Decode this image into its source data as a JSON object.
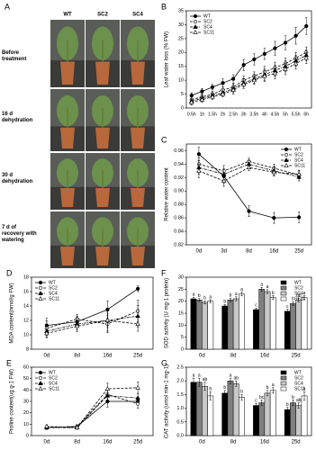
{
  "panel_a": {
    "panel": "A",
    "columns": [
      "WT",
      "SC2",
      "SC4"
    ],
    "rows": [
      "Before treatment",
      "16 d dehydration",
      "30 d dehydration",
      "7 d of recovery with watering"
    ]
  },
  "chart_data": [
    {
      "type": "line",
      "panel": "B",
      "ylabel": "Leaf water loss (% FW)",
      "categories": [
        "0.5h",
        "1h",
        "1.5h",
        "2h",
        "2.5h",
        "3h",
        "3.5h",
        "4h",
        "4.5h",
        "5h",
        "5.5h",
        "6h"
      ],
      "series": [
        {
          "name": "WT",
          "color": "#000000",
          "marker": "filled-circle",
          "dash": "solid",
          "values": [
            4.5,
            6,
            7.5,
            9,
            10.5,
            15.5,
            17.5,
            19.5,
            21.5,
            23.5,
            26,
            29.5
          ],
          "errors": [
            1,
            1,
            1,
            1.5,
            1.5,
            2,
            2,
            2,
            2.5,
            2.5,
            3,
            3
          ]
        },
        {
          "name": "SC2",
          "color": "#000000",
          "marker": "open-circle",
          "dash": "dashed",
          "values": [
            3,
            4,
            5,
            6.5,
            7.5,
            10,
            11.5,
            13,
            14.5,
            16,
            18,
            20
          ],
          "errors": [
            1,
            1,
            1,
            1,
            1.5,
            1.5,
            1.5,
            2,
            2,
            2,
            2,
            2
          ]
        },
        {
          "name": "SC4",
          "color": "#000000",
          "marker": "filled-triangle",
          "dash": "dash-dot",
          "values": [
            2.5,
            3.5,
            4.5,
            5.5,
            7,
            9,
            10.5,
            12,
            13.5,
            15,
            17,
            19
          ],
          "errors": [
            1,
            1,
            1,
            1,
            1.5,
            1.5,
            1.5,
            2,
            2,
            2,
            2,
            2
          ]
        },
        {
          "name": "SC11",
          "color": "#000000",
          "marker": "open-triangle",
          "dash": "dashed",
          "values": [
            2,
            3,
            4,
            5,
            6.5,
            8.5,
            10,
            11.5,
            12.5,
            14,
            16,
            18
          ],
          "errors": [
            1,
            1,
            1,
            1,
            1.5,
            1.5,
            1.5,
            2,
            2,
            2,
            2,
            2
          ]
        }
      ],
      "ylim": [
        0,
        35
      ],
      "yticks": [
        0,
        5,
        10,
        15,
        20,
        25,
        30,
        35
      ],
      "legend": "top-left"
    },
    {
      "type": "line",
      "panel": "C",
      "ylabel": "Relative water content",
      "categories": [
        "0d",
        "3d",
        "8d",
        "16d",
        "25d"
      ],
      "series": [
        {
          "name": "WT",
          "color": "#000000",
          "marker": "filled-circle",
          "dash": "solid",
          "values": [
            0.955,
            0.922,
            0.87,
            0.86,
            0.861
          ],
          "errors": [
            0.01,
            0.01,
            0.008,
            0.008,
            0.008
          ]
        },
        {
          "name": "SC2",
          "color": "#000000",
          "marker": "open-circle",
          "dash": "dashed",
          "values": [
            0.94,
            0.93,
            0.944,
            0.934,
            0.924
          ],
          "errors": [
            0.01,
            0.008,
            0.005,
            0.006,
            0.006
          ]
        },
        {
          "name": "SC4",
          "color": "#000000",
          "marker": "filled-triangle",
          "dash": "dash-dot",
          "values": [
            0.935,
            0.925,
            0.94,
            0.93,
            0.921
          ],
          "errors": [
            0.01,
            0.008,
            0.005,
            0.006,
            0.006
          ]
        },
        {
          "name": "SC11",
          "color": "#000000",
          "marker": "open-triangle",
          "dash": "dashed",
          "values": [
            0.93,
            0.915,
            0.935,
            0.928,
            0.925
          ],
          "errors": [
            0.01,
            0.008,
            0.005,
            0.006,
            0.006
          ]
        }
      ],
      "ylim": [
        0.82,
        0.97
      ],
      "yticks": [
        0.82,
        0.84,
        0.86,
        0.88,
        {
          "value": 0.9,
          "label": "0.90"
        },
        0.92,
        0.94,
        0.96
      ],
      "legend": "top-right"
    },
    {
      "type": "line",
      "panel": "D",
      "ylabel": "MDA content(nmol/g FW)",
      "categories": [
        "0d",
        "8d",
        "16d",
        "25d"
      ],
      "series": [
        {
          "name": "WT",
          "color": "#000000",
          "marker": "filled-circle",
          "dash": "solid",
          "values": [
            11.3,
            11.8,
            13.5,
            16.4
          ],
          "errors": [
            1,
            0.8,
            1.2,
            0.4
          ]
        },
        {
          "name": "SC2",
          "color": "#000000",
          "marker": "open-circle",
          "dash": "dashed",
          "values": [
            10.9,
            12.2,
            11.5,
            13.3
          ],
          "errors": [
            1,
            0.6,
            1.2,
            1.5
          ]
        },
        {
          "name": "SC4",
          "color": "#000000",
          "marker": "filled-triangle",
          "dash": "dash-dot",
          "values": [
            10.5,
            11.5,
            12,
            12.6
          ],
          "errors": [
            0.8,
            0.8,
            1.5,
            1.5
          ]
        },
        {
          "name": "SC11",
          "color": "#000000",
          "marker": "open-triangle",
          "dash": "dashed",
          "values": [
            10.2,
            11.2,
            12,
            11.5
          ],
          "errors": [
            0.6,
            0.8,
            1,
            1
          ]
        }
      ],
      "ylim": [
        8,
        18
      ],
      "yticks": [
        8,
        10,
        12,
        14,
        16,
        18
      ],
      "legend": "top-left"
    },
    {
      "type": "line",
      "panel": "E",
      "ylabel": "Proline content(ug g-1 FW)",
      "categories": [
        "0d",
        "8d",
        "16d",
        "25d"
      ],
      "series": [
        {
          "name": "WT",
          "color": "#000000",
          "marker": "filled-circle",
          "dash": "solid",
          "values": [
            7,
            8,
            30,
            30
          ],
          "errors": [
            1.5,
            1.5,
            5,
            3
          ]
        },
        {
          "name": "SC2",
          "color": "#000000",
          "marker": "open-circle",
          "dash": "dashed",
          "values": [
            7,
            8,
            36,
            28
          ],
          "errors": [
            1.5,
            1.5,
            5,
            4
          ]
        },
        {
          "name": "SC4",
          "color": "#000000",
          "marker": "filled-triangle",
          "dash": "dash-dot",
          "values": [
            7,
            7,
            35,
            33
          ],
          "errors": [
            1.5,
            1.5,
            5,
            4
          ]
        },
        {
          "name": "SC11",
          "color": "#000000",
          "marker": "open-triangle",
          "dash": "dashed",
          "values": [
            8,
            7,
            41,
            42
          ],
          "errors": [
            1.5,
            1.5,
            5,
            5
          ]
        }
      ],
      "ylim": [
        0,
        60
      ],
      "yticks": [
        0,
        10,
        20,
        30,
        40,
        50,
        60
      ],
      "legend": "top-left"
    },
    {
      "type": "bar",
      "panel": "F",
      "ylabel": "SOD activity (U mg-1 protein)",
      "categories": [
        "0d",
        "8d",
        "16d",
        "25d"
      ],
      "series": [
        {
          "name": "WT",
          "color": "#000000",
          "values": [
            21,
            18,
            16.5,
            15.8
          ],
          "errors": [
            0.6,
            0.6,
            0.6,
            0.8
          ],
          "letters": [
            "a",
            "b",
            "c",
            "c"
          ]
        },
        {
          "name": "SC2",
          "color": "#808080",
          "values": [
            20.5,
            20.5,
            25,
            19
          ],
          "errors": [
            0.6,
            0.8,
            0.8,
            0.8
          ],
          "letters": [
            "b",
            "b",
            "a",
            "b"
          ]
        },
        {
          "name": "SC4",
          "color": "#c8c8c8",
          "values": [
            19.5,
            21,
            24,
            20.5
          ],
          "errors": [
            0.6,
            0.8,
            0.8,
            0.8
          ],
          "letters": [
            "b",
            "a",
            "a",
            "ab"
          ]
        },
        {
          "name": "SC11",
          "color": "#ffffff",
          "values": [
            20,
            23,
            21.5,
            21.5
          ],
          "errors": [
            0.6,
            0.8,
            0.8,
            0.8
          ],
          "letters": [
            "a",
            "a",
            "b",
            "a"
          ]
        }
      ],
      "ylim": [
        0,
        30
      ],
      "yticks": [
        0,
        5,
        10,
        15,
        20,
        25,
        30
      ],
      "legend": "top-right"
    },
    {
      "type": "bar",
      "panel": "G",
      "ylabel": "CAT activity (umol min-1 mg-1)",
      "categories": [
        "0d",
        "8d",
        "16d",
        "25d"
      ],
      "series": [
        {
          "name": "WT",
          "color": "#000000",
          "values": [
            1.95,
            1.55,
            1.1,
            0.95
          ],
          "errors": [
            0.15,
            0.1,
            0.08,
            0.08
          ],
          "letters": [
            "a",
            "b",
            "c",
            "b"
          ]
        },
        {
          "name": "SC2",
          "color": "#808080",
          "values": [
            1.95,
            2.0,
            1.2,
            1.2
          ],
          "errors": [
            0.15,
            0.1,
            0.1,
            0.1
          ],
          "letters": [
            "a",
            "a",
            "bc",
            "b"
          ]
        },
        {
          "name": "SC4",
          "color": "#c8c8c8",
          "values": [
            1.8,
            1.9,
            1.55,
            1.1
          ],
          "errors": [
            0.15,
            0.1,
            0.1,
            0.1
          ],
          "letters": [
            "ab",
            "ab",
            "b",
            "ab"
          ]
        },
        {
          "name": "SC11",
          "color": "#ffffff",
          "values": [
            1.45,
            1.4,
            1.65,
            1.45
          ],
          "errors": [
            0.15,
            0.1,
            0.1,
            0.15
          ],
          "letters": [
            "b",
            "b",
            "a",
            "a"
          ]
        }
      ],
      "ylim": [
        0,
        2.5
      ],
      "yticks": [
        {
          "value": 0,
          "label": "0.0"
        },
        0.5,
        {
          "value": 1,
          "label": "1.0"
        },
        1.5,
        {
          "value": 2,
          "label": "2.0"
        },
        2.5
      ],
      "legend": "top-right"
    }
  ]
}
